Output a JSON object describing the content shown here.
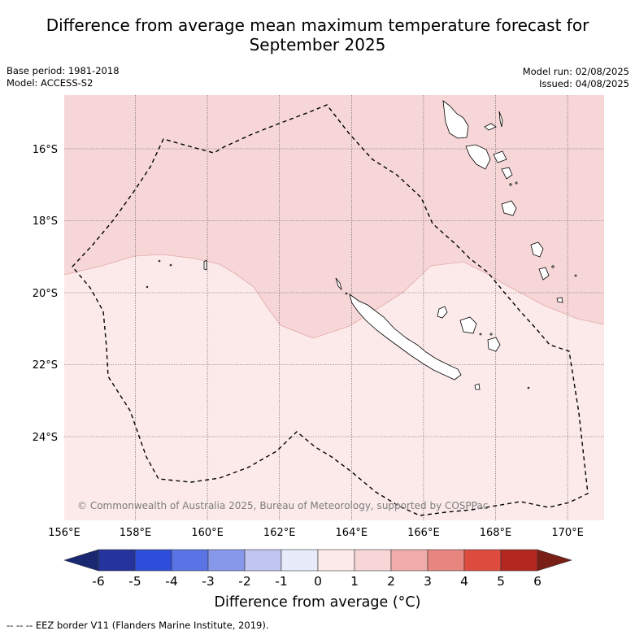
{
  "title": {
    "line1": "Difference from average mean maximum temperature forecast for",
    "line2": "September 2025"
  },
  "info": {
    "base_period": "Base period: 1981-2018",
    "model": "Model: ACCESS-S2",
    "model_run": "Model run: 02/08/2025",
    "issued": "Issued: 04/08/2025"
  },
  "map": {
    "lat_labels": [
      "16°S",
      "18°S",
      "20°S",
      "22°S",
      "24°S"
    ],
    "lon_labels": [
      "156°E",
      "158°E",
      "160°E",
      "162°E",
      "164°E",
      "166°E",
      "168°E",
      "170°E"
    ],
    "copyright": "© Commonwealth of Australia 2025, Bureau of Meteorology, supported by COSPPac",
    "regions": [
      {
        "name": "northern-anomaly-region",
        "range": "1 to 2 °C",
        "color": "#f6d6d6"
      },
      {
        "name": "southern-anomaly-region",
        "range": "0 to 1 °C",
        "color": "#fceaea"
      }
    ],
    "eez_border": "dashed black line"
  },
  "colorbar": {
    "ticks": [
      "-6",
      "-5",
      "-4",
      "-3",
      "-2",
      "-1",
      "0",
      "1",
      "2",
      "3",
      "4",
      "5",
      "6"
    ],
    "colors": [
      "#24349c",
      "#2f4ddb",
      "#5a74e6",
      "#8797ea",
      "#c0c6f1",
      "#e8ecfa",
      "#fcebea",
      "#f6d6d6",
      "#efacaa",
      "#e7857f",
      "#dd4b3f",
      "#b22820"
    ],
    "under_color": "#1a2872",
    "over_color": "#7a1f16",
    "label": "Difference from average (°C)"
  },
  "footnote": "-- -- -- EEZ border V11 (Flanders Marine Institute, 2019)."
}
